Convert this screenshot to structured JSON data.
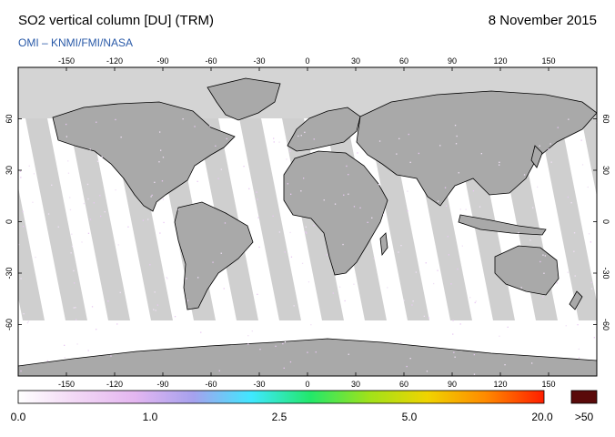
{
  "header": {
    "title": "SO2 vertical column [DU] (TRM)",
    "date": "8 November 2015",
    "credit": "OMI  –  KNMI/FMI/NASA"
  },
  "map": {
    "lon_ticks": [
      "-150",
      "-120",
      "-90",
      "-60",
      "-30",
      "0",
      "30",
      "60",
      "90",
      "120",
      "150"
    ],
    "lat_ticks": [
      "60",
      "30",
      "0",
      "-30",
      "-60"
    ],
    "colors": {
      "land": "#a9a9a9",
      "swath": "#cfcfcf",
      "polar_gray": "#d4d4d4",
      "coast": "#000000"
    }
  },
  "colorbar": {
    "labels": [
      "0.0",
      "1.0",
      "2.5",
      "5.0",
      "20.0"
    ],
    "overflow_label": ">50",
    "stops": [
      "#ffffff",
      "#f2d7f5",
      "#e4b6f0",
      "#a6a1ee",
      "#3fe8ff",
      "#22e86a",
      "#a0e21a",
      "#f0d400",
      "#ff8a00",
      "#ff1e00"
    ],
    "overflow_color": "#5a0a0a"
  }
}
